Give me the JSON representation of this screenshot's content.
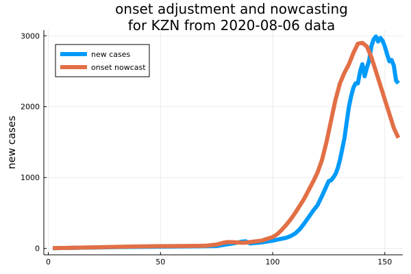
{
  "chart_data": {
    "type": "line",
    "title_line1": "onset adjustment and nowcasting",
    "title_line2": "for KZN from 2020-08-06 data",
    "xlabel": "",
    "ylabel": "new cases",
    "xlim": [
      -2,
      158
    ],
    "ylim": [
      -90,
      3080
    ],
    "x_ticks": [
      0,
      50,
      100,
      150
    ],
    "y_ticks": [
      0,
      1000,
      2000,
      3000
    ],
    "grid": true,
    "legend_position": "top-left",
    "series": [
      {
        "name": "new cases",
        "color": "#009af9",
        "points": [
          [
            2,
            5
          ],
          [
            10,
            8
          ],
          [
            20,
            12
          ],
          [
            30,
            18
          ],
          [
            40,
            22
          ],
          [
            50,
            25
          ],
          [
            60,
            28
          ],
          [
            70,
            32
          ],
          [
            75,
            35
          ],
          [
            80,
            60
          ],
          [
            83,
            75
          ],
          [
            86,
            95
          ],
          [
            88,
            100
          ],
          [
            90,
            70
          ],
          [
            95,
            85
          ],
          [
            100,
            110
          ],
          [
            103,
            130
          ],
          [
            106,
            150
          ],
          [
            108,
            175
          ],
          [
            110,
            210
          ],
          [
            112,
            270
          ],
          [
            114,
            350
          ],
          [
            116,
            440
          ],
          [
            118,
            530
          ],
          [
            120,
            610
          ],
          [
            122,
            740
          ],
          [
            124,
            880
          ],
          [
            125,
            950
          ],
          [
            126,
            960
          ],
          [
            127,
            1000
          ],
          [
            128,
            1050
          ],
          [
            129,
            1130
          ],
          [
            130,
            1250
          ],
          [
            131,
            1400
          ],
          [
            132,
            1560
          ],
          [
            133,
            1780
          ],
          [
            134,
            2000
          ],
          [
            135,
            2150
          ],
          [
            136,
            2270
          ],
          [
            137,
            2330
          ],
          [
            138,
            2330
          ],
          [
            139,
            2500
          ],
          [
            140,
            2600
          ],
          [
            141,
            2430
          ],
          [
            142,
            2550
          ],
          [
            143,
            2650
          ],
          [
            144,
            2850
          ],
          [
            145,
            2950
          ],
          [
            146,
            2990
          ],
          [
            147,
            2920
          ],
          [
            148,
            2970
          ],
          [
            149,
            2930
          ],
          [
            150,
            2850
          ],
          [
            151,
            2740
          ],
          [
            152,
            2640
          ],
          [
            153,
            2660
          ],
          [
            154,
            2580
          ],
          [
            155,
            2370
          ],
          [
            156,
            2330
          ]
        ]
      },
      {
        "name": "onset nowcast",
        "color": "#e26f46",
        "points": [
          [
            2,
            5
          ],
          [
            10,
            10
          ],
          [
            20,
            15
          ],
          [
            30,
            22
          ],
          [
            40,
            28
          ],
          [
            50,
            32
          ],
          [
            60,
            35
          ],
          [
            70,
            38
          ],
          [
            75,
            55
          ],
          [
            78,
            80
          ],
          [
            80,
            90
          ],
          [
            83,
            88
          ],
          [
            86,
            80
          ],
          [
            88,
            82
          ],
          [
            90,
            90
          ],
          [
            95,
            110
          ],
          [
            100,
            160
          ],
          [
            102,
            200
          ],
          [
            104,
            260
          ],
          [
            106,
            330
          ],
          [
            108,
            410
          ],
          [
            110,
            500
          ],
          [
            112,
            600
          ],
          [
            114,
            700
          ],
          [
            116,
            820
          ],
          [
            118,
            940
          ],
          [
            120,
            1070
          ],
          [
            122,
            1250
          ],
          [
            124,
            1500
          ],
          [
            126,
            1800
          ],
          [
            128,
            2100
          ],
          [
            130,
            2330
          ],
          [
            132,
            2480
          ],
          [
            134,
            2600
          ],
          [
            136,
            2760
          ],
          [
            138,
            2890
          ],
          [
            140,
            2900
          ],
          [
            142,
            2850
          ],
          [
            144,
            2700
          ],
          [
            146,
            2500
          ],
          [
            148,
            2300
          ],
          [
            150,
            2100
          ],
          [
            152,
            1900
          ],
          [
            154,
            1700
          ],
          [
            156,
            1560
          ]
        ]
      }
    ]
  }
}
